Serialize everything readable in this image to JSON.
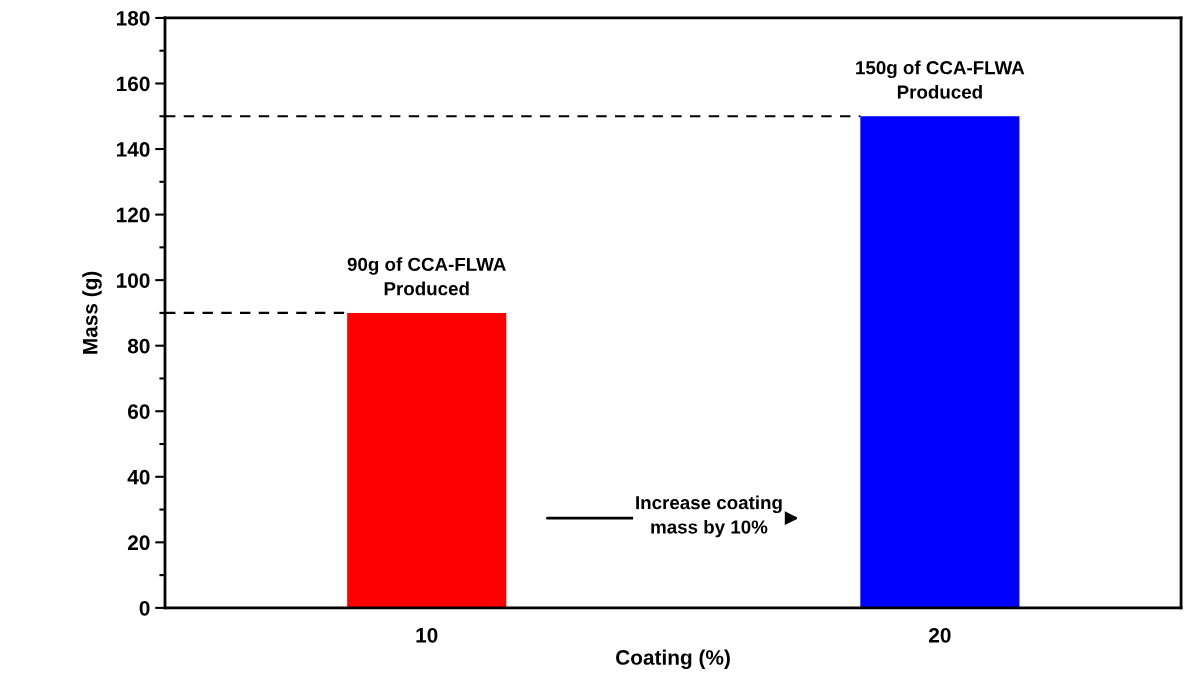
{
  "chart_data": {
    "type": "bar",
    "xlabel": "Coating (%)",
    "ylabel": "Mass (g)",
    "categories": [
      "10",
      "20"
    ],
    "values": [
      90,
      150
    ],
    "colors": [
      "#ff0000",
      "#0000ff"
    ],
    "ylim": [
      0,
      180
    ],
    "yticks": [
      0,
      20,
      40,
      60,
      80,
      100,
      120,
      140,
      160,
      180
    ],
    "grid": false,
    "legend": false,
    "ref_lines": [
      {
        "axis": "y",
        "value": 90,
        "color": "#000000",
        "line_style": "dashed"
      },
      {
        "axis": "y",
        "value": 150,
        "color": "#000000",
        "line_style": "dashed"
      }
    ],
    "annotations": [
      {
        "text": "90g of CCA-FLWA\nProduced",
        "x": "10",
        "y": 90
      },
      {
        "text": "150g of CCA-FLWA\nProduced",
        "x": "20",
        "y": 150
      },
      "Increase coating\nmass by 10%"
    ]
  }
}
